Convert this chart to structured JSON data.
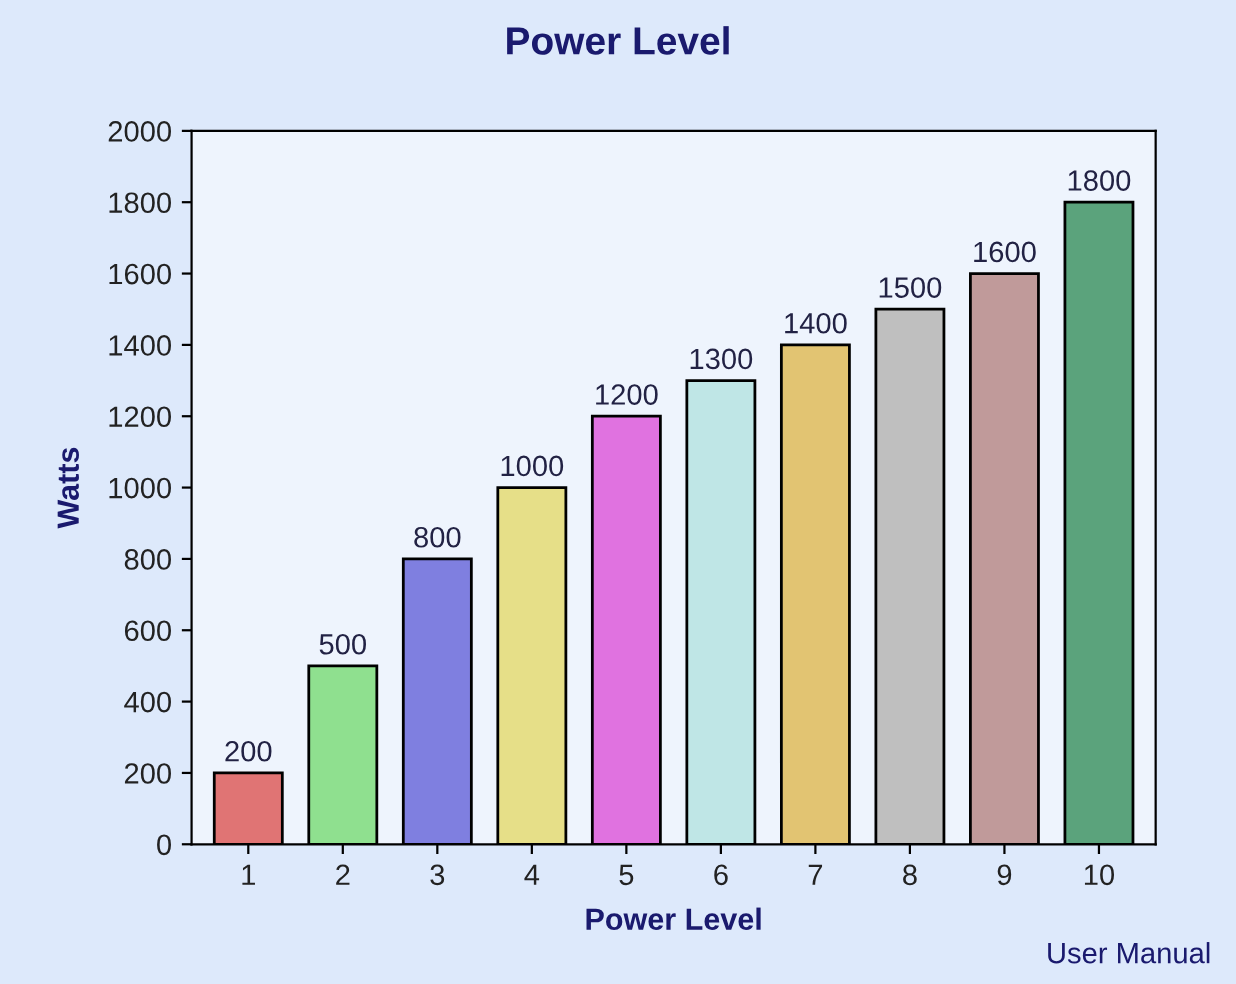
{
  "chart_data": {
    "type": "bar",
    "title": "Power Level",
    "xlabel": "Power Level",
    "ylabel": "Watts",
    "categories": [
      "1",
      "2",
      "3",
      "4",
      "5",
      "6",
      "7",
      "8",
      "9",
      "10"
    ],
    "values": [
      200,
      500,
      800,
      1000,
      1200,
      1300,
      1400,
      1500,
      1600,
      1800
    ],
    "colors": [
      "#e07474",
      "#8fe08f",
      "#7f7fe0",
      "#e6df88",
      "#e072e0",
      "#bfe6e6",
      "#e2c472",
      "#bfbfbf",
      "#c09a9a",
      "#5ba37c"
    ],
    "ylim": [
      0,
      2000
    ],
    "yticks": [
      0,
      200,
      400,
      600,
      800,
      1000,
      1200,
      1400,
      1600,
      1800,
      2000
    ],
    "data_labels": true,
    "grid": false,
    "annotations": [
      "User Manual"
    ]
  }
}
